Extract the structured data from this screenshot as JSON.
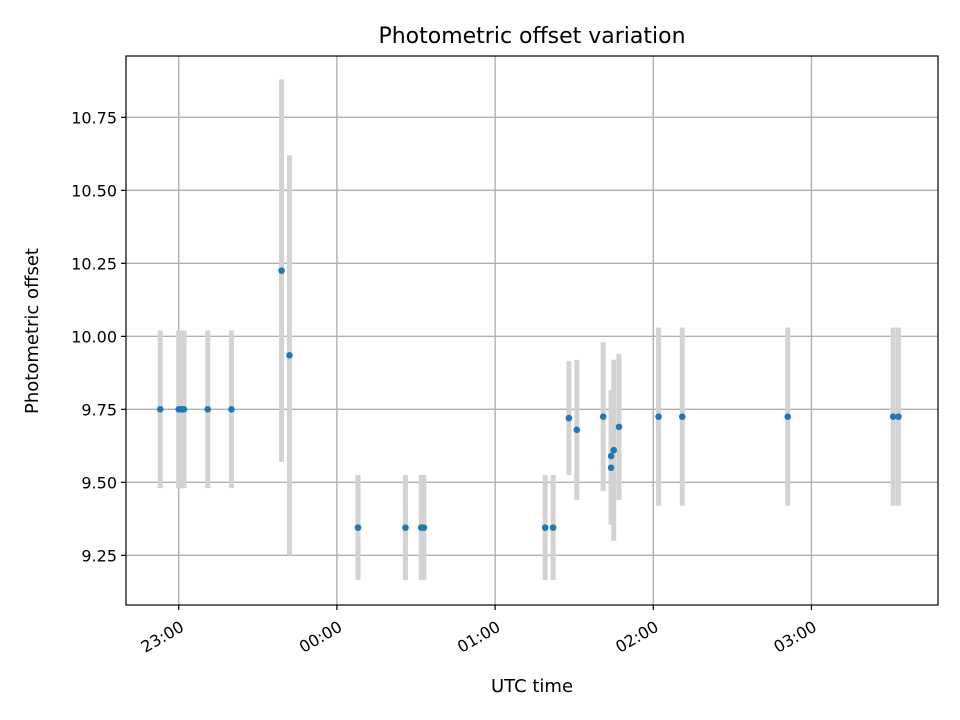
{
  "chart_data": {
    "type": "scatter",
    "title": "Photometric offset variation",
    "xlabel": "UTC time",
    "ylabel": "Photometric offset",
    "grid": true,
    "xlim": [
      "22:40",
      "03:48"
    ],
    "ylim": [
      9.08,
      10.96
    ],
    "x_ticks": [
      "23:00",
      "00:00",
      "01:00",
      "02:00",
      "03:00"
    ],
    "y_ticks": [
      9.25,
      9.5,
      9.75,
      10.0,
      10.25,
      10.5,
      10.75
    ],
    "colors": {
      "marker": "#1f77b4",
      "errorbar": "#d3d3d3"
    },
    "points": [
      {
        "t": "22:53",
        "y": 9.75,
        "err": 0.27
      },
      {
        "t": "23:00",
        "y": 9.75,
        "err": 0.27
      },
      {
        "t": "23:01",
        "y": 9.75,
        "err": 0.27
      },
      {
        "t": "23:02",
        "y": 9.75,
        "err": 0.27
      },
      {
        "t": "23:11",
        "y": 9.75,
        "err": 0.27
      },
      {
        "t": "23:20",
        "y": 9.75,
        "err": 0.27
      },
      {
        "t": "23:39",
        "y": 10.225,
        "err": 0.655
      },
      {
        "t": "23:42",
        "y": 9.935,
        "err": 0.685
      },
      {
        "t": "00:08",
        "y": 9.345,
        "err": 0.18
      },
      {
        "t": "00:26",
        "y": 9.345,
        "err": 0.18
      },
      {
        "t": "00:32",
        "y": 9.345,
        "err": 0.18
      },
      {
        "t": "00:33",
        "y": 9.345,
        "err": 0.18
      },
      {
        "t": "01:19",
        "y": 9.345,
        "err": 0.18
      },
      {
        "t": "01:22",
        "y": 9.345,
        "err": 0.18
      },
      {
        "t": "01:28",
        "y": 9.72,
        "err": 0.195
      },
      {
        "t": "01:31",
        "y": 9.68,
        "err": 0.24
      },
      {
        "t": "01:41",
        "y": 9.725,
        "err": 0.255
      },
      {
        "t": "01:44",
        "y": 9.59,
        "err": 0.225
      },
      {
        "t": "01:44",
        "y": 9.55,
        "err": 0.195
      },
      {
        "t": "01:45",
        "y": 9.61,
        "err": 0.31
      },
      {
        "t": "01:47",
        "y": 9.69,
        "err": 0.25
      },
      {
        "t": "02:02",
        "y": 9.725,
        "err": 0.305
      },
      {
        "t": "02:11",
        "y": 9.725,
        "err": 0.305
      },
      {
        "t": "02:51",
        "y": 9.725,
        "err": 0.305
      },
      {
        "t": "03:31",
        "y": 9.725,
        "err": 0.305
      },
      {
        "t": "03:33",
        "y": 9.725,
        "err": 0.305
      }
    ]
  }
}
